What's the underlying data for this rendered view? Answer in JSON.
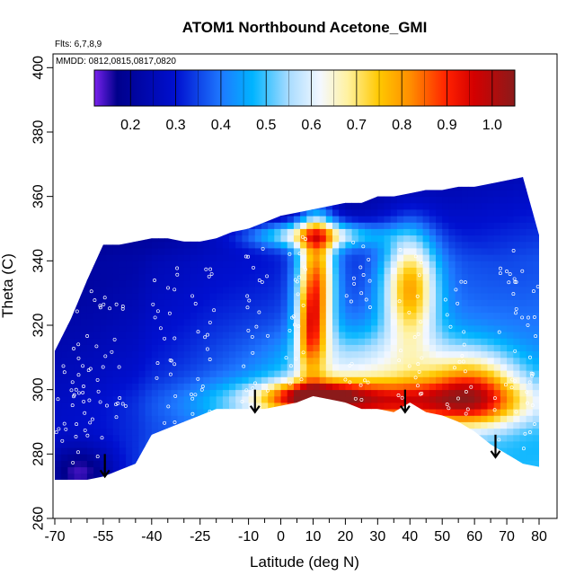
{
  "chart_data": {
    "type": "heatmap",
    "title": "ATOM1 Northbound Acetone_GMI",
    "notes": [
      "Flts: 6,7,8,9",
      "MMDD: 0812,0815,0817,0820"
    ],
    "xlabel": "Latitude (deg N)",
    "ylabel": "Theta (C)",
    "xlim": [
      -70,
      85
    ],
    "ylim": [
      260,
      405
    ],
    "x_ticks": [
      -70,
      -55,
      -40,
      -25,
      -10,
      0,
      10,
      20,
      30,
      40,
      50,
      60,
      70,
      80
    ],
    "x_minor_ticks": [
      -65,
      -60,
      -50,
      -45,
      -35,
      -30,
      -20,
      -15,
      -5,
      5,
      15,
      25,
      35,
      45,
      55,
      65,
      75
    ],
    "y_ticks": [
      260,
      280,
      300,
      320,
      340,
      360,
      380,
      400
    ],
    "colorbar": {
      "range": [
        0.12,
        1.05
      ],
      "ticks": [
        0.2,
        0.3,
        0.4,
        0.5,
        0.6,
        0.7,
        0.8,
        0.9,
        1.0
      ],
      "stops": [
        {
          "v": 0.12,
          "c": "#7a22ee"
        },
        {
          "v": 0.17,
          "c": "#00008b"
        },
        {
          "v": 0.3,
          "c": "#0010d0"
        },
        {
          "v": 0.4,
          "c": "#1e78ff"
        },
        {
          "v": 0.47,
          "c": "#00b4ff"
        },
        {
          "v": 0.55,
          "c": "#a8dcff"
        },
        {
          "v": 0.62,
          "c": "#f4f8ff"
        },
        {
          "v": 0.68,
          "c": "#fff2a0"
        },
        {
          "v": 0.75,
          "c": "#ffc800"
        },
        {
          "v": 0.82,
          "c": "#ff8c00"
        },
        {
          "v": 0.9,
          "c": "#ff2000"
        },
        {
          "v": 0.96,
          "c": "#d40000"
        },
        {
          "v": 1.05,
          "c": "#8b1a1a"
        }
      ]
    },
    "field": {
      "lat_points": [
        -70,
        -65,
        -60,
        -55,
        -50,
        -45,
        -40,
        -35,
        -30,
        -25,
        -20,
        -15,
        -10,
        -5,
        0,
        5,
        10,
        15,
        20,
        25,
        30,
        35,
        40,
        45,
        50,
        55,
        60,
        65,
        70,
        75,
        80
      ],
      "theta_bottom": [
        272,
        272,
        272,
        273,
        275,
        277,
        286,
        288,
        290,
        292,
        294,
        294,
        294,
        294,
        295,
        296,
        298,
        297,
        296,
        294,
        294,
        293,
        296,
        293,
        292,
        290,
        287,
        283,
        280,
        277,
        276
      ],
      "theta_top": [
        312,
        322,
        334,
        345,
        345,
        346,
        347,
        347,
        346,
        346,
        347,
        349,
        350,
        352,
        354,
        355,
        356,
        357,
        358,
        358,
        360,
        360,
        361,
        362,
        362,
        363,
        363,
        364,
        365,
        366,
        348
      ],
      "features": [
        {
          "lat": -62,
          "theta": 274,
          "lat_w": 8,
          "theta_w": 6,
          "value": -0.18
        },
        {
          "lat": 11,
          "theta": 335,
          "lat_w": 4,
          "theta_w": 15,
          "value": 0.48
        },
        {
          "lat": 9,
          "theta": 318,
          "lat_w": 3,
          "theta_w": 10,
          "value": 0.28
        },
        {
          "lat": 40,
          "theta": 332,
          "lat_w": 6,
          "theta_w": 12,
          "value": 0.42
        },
        {
          "lat": 30,
          "theta": 296,
          "lat_w": 30,
          "theta_w": 5,
          "value": 0.45
        },
        {
          "lat": 10,
          "theta": 298,
          "lat_w": 10,
          "theta_w": 3,
          "value": 0.35
        },
        {
          "lat": 10,
          "theta": 348,
          "lat_w": 14,
          "theta_w": 3,
          "value": 0.35
        },
        {
          "lat": 60,
          "theta": 300,
          "lat_w": 10,
          "theta_w": 8,
          "value": 0.32
        },
        {
          "lat": 28,
          "theta": 308,
          "lat_w": 22,
          "theta_w": 8,
          "value": 0.18
        }
      ]
    },
    "arrows": [
      {
        "lat": -54.5,
        "theta_from": 280,
        "theta_to": 273
      },
      {
        "lat": -8,
        "theta_from": 300,
        "theta_to": 293
      },
      {
        "lat": 38.5,
        "theta_from": 300,
        "theta_to": 293
      },
      {
        "lat": 66.5,
        "theta_from": 286,
        "theta_to": 279
      }
    ]
  }
}
